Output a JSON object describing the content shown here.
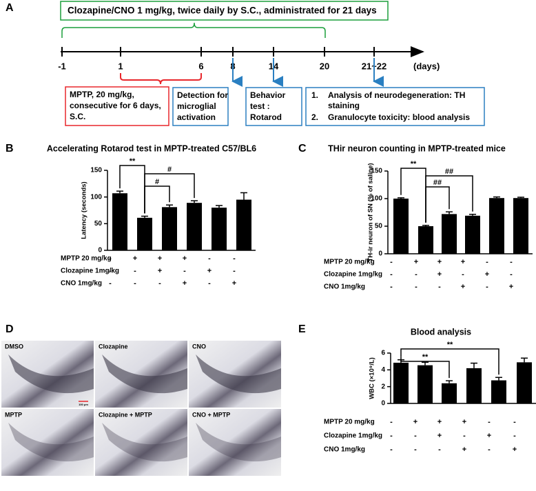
{
  "timeline": {
    "letter": "A",
    "header": "Clozapine/CNO 1 mg/kg, twice daily by S.C., administrated for 21 days",
    "ticks": [
      {
        "label": "-1"
      },
      {
        "label": "1"
      },
      {
        "label": "6"
      },
      {
        "label": "8",
        "color": "#e8262b"
      },
      {
        "label": "14",
        "color": "#e8262b"
      },
      {
        "label": "20"
      },
      {
        "label": "21~22"
      }
    ],
    "unit": "(days)",
    "boxes": [
      {
        "lines": [
          "MPTP, 20 mg/kg,",
          "consecutive for 6 days,",
          "S.C."
        ],
        "color": "#e8262b",
        "border": "#e8262b"
      },
      {
        "lines": [
          "Detection for",
          "microglial",
          "activation"
        ],
        "color": "#1a9e3a",
        "border": "#2a7fc1"
      },
      {
        "lines": [
          "Behavior",
          "test :",
          "Rotarod"
        ],
        "color": "#1a9e3a",
        "border": "#2a7fc1"
      }
    ],
    "list_box": {
      "color": "#1a9e3a",
      "border": "#2a7fc1",
      "items": [
        {
          "number": "1.",
          "lines": [
            "Analysis of neurodegeneration: TH",
            "staining"
          ]
        },
        {
          "number": "2.",
          "lines": [
            "Granulocyte toxicity: blood analysis"
          ]
        }
      ]
    }
  },
  "chart_data": [
    {
      "type": "bar",
      "letter": "B",
      "title": "Accelerating Rotarod test in MPTP-treated C57/BL6",
      "y_label": "Latency (seconds)",
      "values": [
        107,
        61,
        81,
        89,
        80,
        95
      ],
      "errors": [
        4,
        3,
        4,
        4,
        4,
        13
      ],
      "color": "#000000",
      "ylim": [
        0,
        150
      ],
      "yticks": [
        0,
        50,
        100,
        150
      ],
      "annotations": [
        "**",
        "#",
        "#"
      ],
      "rows": [
        {
          "label": "MPTP 20 mg/kg",
          "signs": [
            "-",
            "+",
            "+",
            "+",
            "-",
            "-"
          ]
        },
        {
          "label": "Clozapine 1mg/kg",
          "signs": [
            "-",
            "-",
            "+",
            "-",
            "+",
            "-"
          ]
        },
        {
          "label": "CNO 1mg/kg",
          "signs": [
            "-",
            "-",
            "-",
            "+",
            "-",
            "+"
          ]
        }
      ]
    },
    {
      "type": "bar",
      "letter": "C",
      "title": "THir neuron counting in MPTP-treated mice",
      "y_label": "TH-ir neuron of SN (% of saline)",
      "values": [
        100,
        50,
        72,
        69,
        101,
        101
      ],
      "errors": [
        1.5,
        1.5,
        4,
        2.5,
        2,
        1.5
      ],
      "color": "#000000",
      "ylim": [
        0,
        150
      ],
      "yticks": [
        0,
        50,
        100,
        150
      ],
      "annotations": [
        "**",
        "##",
        "##"
      ],
      "rows": [
        {
          "label": "MPTP 20 mg/kg",
          "signs": [
            "-",
            "+",
            "+",
            "+",
            "-",
            "-"
          ]
        },
        {
          "label": "Clozapine 1mg/kg",
          "signs": [
            "-",
            "-",
            "+",
            "-",
            "+",
            "-"
          ]
        },
        {
          "label": "CNO 1mg/kg",
          "signs": [
            "-",
            "-",
            "-",
            "+",
            "-",
            "+"
          ]
        }
      ]
    },
    {
      "type": "bar",
      "letter": "E",
      "title": "Blood analysis",
      "y_label": "WBC (×10⁹/L)",
      "values": [
        4.85,
        4.55,
        2.4,
        4.2,
        2.75,
        4.9
      ],
      "errors": [
        0.35,
        0.35,
        0.3,
        0.6,
        0.35,
        0.5
      ],
      "color": "#000000",
      "ylim": [
        0,
        6
      ],
      "yticks": [
        0,
        2,
        4,
        6
      ],
      "annotations": [
        "**",
        "**"
      ],
      "rows": [
        {
          "label": "MPTP 20 mg/kg",
          "signs": [
            "-",
            "+",
            "+",
            "+",
            "-",
            "-"
          ]
        },
        {
          "label": "Clozapine 1mg/kg",
          "signs": [
            "-",
            "-",
            "+",
            "-",
            "+",
            "-"
          ]
        },
        {
          "label": "CNO 1mg/kg",
          "signs": [
            "-",
            "-",
            "-",
            "+",
            "-",
            "+"
          ]
        }
      ]
    }
  ],
  "micrographs": {
    "letter": "D",
    "labels": [
      "DMSO",
      "Clozapine",
      "CNO",
      "MPTP",
      "Clozapine + MPTP",
      "CNO + MPTP"
    ],
    "scale": "100 μm"
  }
}
